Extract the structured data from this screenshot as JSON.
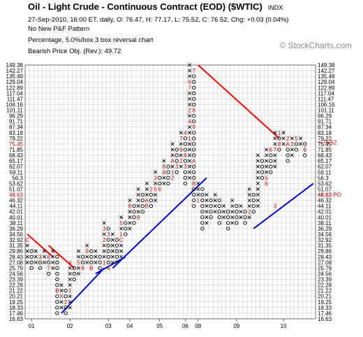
{
  "header": {
    "title": "Oil - Light Crude - Continuous Contract (EOD) ($WTIC)",
    "exchange": "INDX",
    "quote_line": "27-Sep-2010, 16:00 ET, daily, O: 76.47, H: 77.17, L: 75.52, C: 76.52, Chg: +0.03 (0.04%)",
    "pattern_line": "No New P&F Pattern",
    "box_line": "Percentage, 5.0%/box 3 box reversal chart",
    "objective_line": "Bearish Price Obj. (Rev.): 49.72",
    "watermark": "© StockCharts.com"
  },
  "chart_data": {
    "type": "point-and-figure",
    "box_size_percent": 5.0,
    "reversal_boxes": 3,
    "y_scale": "log",
    "price_levels": [
      16.63,
      17.46,
      18.33,
      19.25,
      20.21,
      21.22,
      22.28,
      23.39,
      24.56,
      25.79,
      27.08,
      28.43,
      29.86,
      31.35,
      32.92,
      34.56,
      36.29,
      38.11,
      40.01,
      42.01,
      44.11,
      46.32,
      48.63,
      51.07,
      53.62,
      56.3,
      59.11,
      62.07,
      65.17,
      68.43,
      71.85,
      75.45,
      79.22,
      83.18,
      87.34,
      91.71,
      96.29,
      101.11,
      106.16,
      111.47,
      117.04,
      122.89,
      129.04,
      135.49,
      142.27,
      149.38
    ],
    "right_axis_extra_labels": [
      {
        "label": "<-76.52",
        "price": 76.52,
        "color": "#cc0000"
      },
      {
        "label": "48.63 PO",
        "price": 48.63,
        "color": "#cc0000"
      }
    ],
    "left_axis_highlight": [
      {
        "label": "75.45",
        "color": "#cc0000"
      },
      {
        "label": "48.63",
        "color": "#cc0000"
      }
    ],
    "x_labels": [
      {
        "label": "01",
        "column": 1
      },
      {
        "label": "02",
        "column": 10
      },
      {
        "label": "03",
        "column": 19
      },
      {
        "label": "04",
        "column": 24
      },
      {
        "label": "05",
        "column": 31
      },
      {
        "label": "06",
        "column": 37
      },
      {
        "label": "08",
        "column": 40
      },
      {
        "label": "09",
        "column": 49
      },
      {
        "label": "10",
        "column": 60
      }
    ],
    "columns": [
      {
        "type": "X",
        "from": 27.08,
        "to": 31.35
      },
      {
        "type": "O",
        "from": 29.86,
        "to": 25.79
      },
      {
        "type": "X",
        "from": 27.08,
        "to": 29.86
      },
      {
        "type": "O",
        "from": 28.43,
        "to": 25.79
      },
      {
        "type": "X",
        "from": 27.08,
        "to": 29.86
      },
      {
        "type": "O",
        "from": 28.43,
        "to": 24.56
      },
      {
        "type": "X",
        "from": 25.79,
        "to": 29.86
      },
      {
        "type": "O",
        "from": 28.43,
        "to": 17.46
      },
      {
        "type": "X",
        "from": 18.33,
        "to": 22.28
      },
      {
        "type": "O",
        "from": 21.22,
        "to": 17.46
      },
      {
        "type": "X",
        "from": 18.33,
        "to": 27.08
      },
      {
        "type": "O",
        "from": 25.79,
        "to": 23.39
      },
      {
        "type": "X",
        "from": 24.56,
        "to": 29.86
      },
      {
        "type": "O",
        "from": 28.43,
        "to": 25.79
      },
      {
        "type": "X",
        "from": 27.08,
        "to": 31.35
      },
      {
        "type": "O",
        "from": 29.86,
        "to": 25.79
      },
      {
        "type": "X",
        "from": 27.08,
        "to": 29.86
      },
      {
        "type": "O",
        "from": 28.43,
        "to": 25.79
      },
      {
        "type": "X",
        "from": 27.08,
        "to": 38.11
      },
      {
        "type": "O",
        "from": 36.29,
        "to": 25.79
      },
      {
        "type": "X",
        "from": 27.08,
        "to": 34.56
      },
      {
        "type": "O",
        "from": 32.92,
        "to": 27.08
      },
      {
        "type": "X",
        "from": 28.43,
        "to": 40.01
      },
      {
        "type": "O",
        "from": 38.11,
        "to": 34.56
      },
      {
        "type": "X",
        "from": 36.29,
        "to": 46.32
      },
      {
        "type": "O",
        "from": 44.11,
        "to": 38.11
      },
      {
        "type": "X",
        "from": 40.01,
        "to": 51.07
      },
      {
        "type": "O",
        "from": 48.63,
        "to": 42.01
      },
      {
        "type": "X",
        "from": 44.11,
        "to": 53.62
      },
      {
        "type": "O",
        "from": 51.07,
        "to": 44.11
      },
      {
        "type": "X",
        "from": 46.32,
        "to": 59.11
      },
      {
        "type": "O",
        "from": 56.3,
        "to": 51.07
      },
      {
        "type": "X",
        "from": 53.62,
        "to": 65.17
      },
      {
        "type": "O",
        "from": 62.07,
        "to": 53.62
      },
      {
        "type": "X",
        "from": 56.3,
        "to": 75.45
      },
      {
        "type": "O",
        "from": 71.85,
        "to": 59.11
      },
      {
        "type": "X",
        "from": 62.07,
        "to": 83.18
      },
      {
        "type": "O",
        "from": 79.22,
        "to": 53.62
      },
      {
        "type": "X",
        "from": 56.3,
        "to": 149.38
      },
      {
        "type": "O",
        "from": 142.27,
        "to": 44.11
      },
      {
        "type": "X",
        "from": 46.32,
        "to": 53.62
      },
      {
        "type": "O",
        "from": 51.07,
        "to": 36.29
      },
      {
        "type": "X",
        "from": 38.11,
        "to": 48.63
      },
      {
        "type": "O",
        "from": 46.32,
        "to": 40.01
      },
      {
        "type": "X",
        "from": 42.01,
        "to": 48.63
      },
      {
        "type": "O",
        "from": 46.32,
        "to": 38.11
      },
      {
        "type": "X",
        "from": 40.01,
        "to": 44.11
      },
      {
        "type": "O",
        "from": 42.01,
        "to": 36.29
      },
      {
        "type": "X",
        "from": 38.11,
        "to": 46.32
      },
      {
        "type": "O",
        "from": 44.11,
        "to": 38.11
      },
      {
        "type": "X",
        "from": 40.01,
        "to": 44.11
      },
      {
        "type": "O",
        "from": 42.01,
        "to": 38.11
      },
      {
        "type": "X",
        "from": 40.01,
        "to": 51.07
      },
      {
        "type": "O",
        "from": 48.63,
        "to": 42.01
      },
      {
        "type": "X",
        "from": 44.11,
        "to": 68.43
      },
      {
        "type": "O",
        "from": 65.17,
        "to": 56.3
      },
      {
        "type": "X",
        "from": 59.11,
        "to": 71.85
      },
      {
        "type": "O",
        "from": 68.43,
        "to": 59.11
      },
      {
        "type": "X",
        "from": 62.07,
        "to": 83.18
      },
      {
        "type": "O",
        "from": 79.22,
        "to": 71.85
      },
      {
        "type": "X",
        "from": 75.45,
        "to": 83.18
      },
      {
        "type": "O",
        "from": 79.22,
        "to": 65.17
      },
      {
        "type": "X",
        "from": 68.43,
        "to": 79.22
      },
      {
        "type": "O",
        "from": 75.45,
        "to": 71.85
      },
      {
        "type": "X",
        "from": 75.45,
        "to": 79.22
      },
      {
        "type": "O",
        "from": 75.45,
        "to": 68.43
      }
    ],
    "markers": [
      {
        "column": 0,
        "price": 32.92,
        "label": "C"
      },
      {
        "column": 3,
        "price": 28.43,
        "label": "3"
      },
      {
        "column": 5,
        "price": 28.43,
        "label": "6"
      },
      {
        "column": 5,
        "price": 25.79,
        "label": "7"
      },
      {
        "column": 7,
        "price": 21.22,
        "label": "B"
      },
      {
        "column": 8,
        "price": 20.21,
        "label": "X"
      },
      {
        "column": 9,
        "price": 19.25,
        "label": "2"
      },
      {
        "column": 10,
        "price": 27.08,
        "label": "4"
      },
      {
        "column": 10,
        "price": 21.22,
        "label": "1"
      },
      {
        "column": 12,
        "price": 27.08,
        "label": "5"
      },
      {
        "column": 13,
        "price": 25.79,
        "label": "8"
      },
      {
        "column": 14,
        "price": 29.86,
        "label": "9"
      },
      {
        "column": 15,
        "price": 25.79,
        "label": "B"
      },
      {
        "column": 18,
        "price": 36.29,
        "label": "3"
      },
      {
        "column": 18,
        "price": 32.92,
        "label": "2"
      },
      {
        "column": 18,
        "price": 27.08,
        "label": "1"
      },
      {
        "column": 19,
        "price": 34.56,
        "label": "3"
      },
      {
        "column": 19,
        "price": 25.79,
        "label": "4"
      },
      {
        "column": 22,
        "price": 34.56,
        "label": "1"
      },
      {
        "column": 22,
        "price": 32.92,
        "label": "C"
      },
      {
        "column": 22,
        "price": 38.11,
        "label": "5"
      },
      {
        "column": 24,
        "price": 44.11,
        "label": "8"
      },
      {
        "column": 26,
        "price": 40.01,
        "label": "9"
      },
      {
        "column": 28,
        "price": 46.32,
        "label": "A"
      },
      {
        "column": 28,
        "price": 44.11,
        "label": "B"
      },
      {
        "column": 29,
        "price": 51.07,
        "label": "2"
      },
      {
        "column": 30,
        "price": 56.3,
        "label": "3"
      },
      {
        "column": 30,
        "price": 51.07,
        "label": "5"
      },
      {
        "column": 31,
        "price": 51.07,
        "label": "6"
      },
      {
        "column": 32,
        "price": 62.07,
        "label": "8"
      },
      {
        "column": 32,
        "price": 59.11,
        "label": "8"
      },
      {
        "column": 34,
        "price": 65.17,
        "label": "A"
      },
      {
        "column": 34,
        "price": 59.11,
        "label": "1"
      },
      {
        "column": 34,
        "price": 56.3,
        "label": "2"
      },
      {
        "column": 35,
        "price": 62.07,
        "label": "3"
      },
      {
        "column": 36,
        "price": 79.22,
        "label": "7"
      },
      {
        "column": 36,
        "price": 71.85,
        "label": "9"
      },
      {
        "column": 36,
        "price": 65.17,
        "label": "2"
      },
      {
        "column": 37,
        "price": 83.18,
        "label": "4"
      },
      {
        "column": 37,
        "price": 68.43,
        "label": "8"
      },
      {
        "column": 37,
        "price": 62.07,
        "label": "3"
      },
      {
        "column": 38,
        "price": 129.04,
        "label": "6"
      },
      {
        "column": 38,
        "price": 122.89,
        "label": "7"
      },
      {
        "column": 38,
        "price": 101.11,
        "label": "2"
      },
      {
        "column": 38,
        "price": 91.71,
        "label": "4"
      },
      {
        "column": 38,
        "price": 79.22,
        "label": "1"
      },
      {
        "column": 39,
        "price": 142.27,
        "label": "7"
      },
      {
        "column": 39,
        "price": 101.11,
        "label": "8"
      },
      {
        "column": 39,
        "price": 87.34,
        "label": "9"
      },
      {
        "column": 39,
        "price": 65.17,
        "label": "A"
      },
      {
        "column": 39,
        "price": 53.62,
        "label": "B"
      },
      {
        "column": 40,
        "price": 46.32,
        "label": "1"
      },
      {
        "column": 52,
        "price": 42.01,
        "label": "2"
      },
      {
        "column": 56,
        "price": 56.3,
        "label": "5"
      },
      {
        "column": 56,
        "price": 53.62,
        "label": "6"
      },
      {
        "column": 57,
        "price": 71.85,
        "label": "6"
      },
      {
        "column": 58,
        "price": 71.85,
        "label": "7"
      },
      {
        "column": 58,
        "price": 44.11,
        "label": "3"
      },
      {
        "column": 59,
        "price": 83.18,
        "label": "1"
      },
      {
        "column": 59,
        "price": 75.45,
        "label": "8"
      },
      {
        "column": 61,
        "price": 75.45,
        "label": "A"
      },
      {
        "column": 61,
        "price": 79.22,
        "label": "2"
      },
      {
        "column": 62,
        "price": 75.45,
        "label": "3"
      },
      {
        "column": 63,
        "price": 79.22,
        "label": "5"
      },
      {
        "column": 65,
        "price": 71.85,
        "label": "6"
      }
    ],
    "trendlines": [
      {
        "type": "bearish-resistance",
        "color": "#ff0000",
        "from": {
          "column": 0,
          "price": 34.56
        },
        "to": {
          "column": 6,
          "price": 28.43
        }
      },
      {
        "type": "bearish-resistance",
        "color": "#ff0000",
        "from": {
          "column": 5,
          "price": 31.35
        },
        "to": {
          "column": 11,
          "price": 25.79
        }
      },
      {
        "type": "bullish-support",
        "color": "#0000cc",
        "from": {
          "column": 8,
          "price": 17.46
        },
        "to": {
          "column": 18,
          "price": 25.79
        }
      },
      {
        "type": "bullish-support",
        "color": "#0000cc",
        "from": {
          "column": 16,
          "price": 24.56
        },
        "to": {
          "column": 23,
          "price": 28.43
        }
      },
      {
        "type": "bullish-support",
        "color": "#0000cc",
        "from": {
          "column": 20,
          "price": 25.79
        },
        "to": {
          "column": 42,
          "price": 56.3
        }
      },
      {
        "type": "bearish-resistance",
        "color": "#ff0000",
        "from": {
          "column": 40,
          "price": 149.38
        },
        "to": {
          "column": 59,
          "price": 79.22
        }
      },
      {
        "type": "bullish-support",
        "color": "#0000cc",
        "from": {
          "column": 53,
          "price": 36.29
        },
        "to": {
          "column": 67,
          "price": 53.62
        }
      }
    ],
    "colors": {
      "x": "#000000",
      "o": "#000000",
      "marker": "#cc0000",
      "grid": "#c8c8c8",
      "support": "#0000cc",
      "resistance": "#ff0000"
    }
  }
}
